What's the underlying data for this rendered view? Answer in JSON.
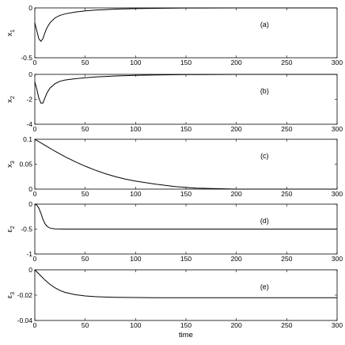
{
  "chart_data": [
    {
      "type": "line",
      "annotation": "(a)",
      "ylabel": "x",
      "ylabel_sub": "1",
      "xlim": [
        0,
        300
      ],
      "ylim": [
        -0.5,
        0
      ],
      "xticks": [
        0,
        50,
        100,
        150,
        200,
        250,
        300
      ],
      "yticks": [
        {
          "v": 0,
          "label": "0"
        },
        {
          "v": -0.5,
          "label": "-0.5"
        }
      ],
      "series": [
        {
          "x": [
            0,
            2,
            4,
            6,
            8,
            10,
            12,
            15,
            20,
            25,
            30,
            40,
            50,
            60,
            80,
            100,
            120,
            150,
            200,
            250,
            300
          ],
          "y": [
            -0.15,
            -0.23,
            -0.31,
            -0.335,
            -0.31,
            -0.25,
            -0.2,
            -0.15,
            -0.1,
            -0.075,
            -0.06,
            -0.042,
            -0.03,
            -0.022,
            -0.012,
            -0.007,
            -0.004,
            -0.001,
            0,
            0,
            0
          ]
        }
      ]
    },
    {
      "type": "line",
      "annotation": "(b)",
      "ylabel": "x",
      "ylabel_sub": "2",
      "xlim": [
        0,
        300
      ],
      "ylim": [
        -4,
        0
      ],
      "xticks": [
        0,
        50,
        100,
        150,
        200,
        250,
        300
      ],
      "yticks": [
        {
          "v": 0,
          "label": "0"
        },
        {
          "v": -2,
          "label": "-2"
        },
        {
          "v": -4,
          "label": "-4"
        }
      ],
      "series": [
        {
          "x": [
            0,
            2,
            4,
            6,
            8,
            10,
            12,
            15,
            20,
            25,
            30,
            40,
            50,
            60,
            80,
            100,
            120,
            150,
            200,
            250,
            300
          ],
          "y": [
            -0.6,
            -1.2,
            -1.9,
            -2.3,
            -2.3,
            -1.9,
            -1.5,
            -1.1,
            -0.75,
            -0.55,
            -0.45,
            -0.35,
            -0.27,
            -0.21,
            -0.13,
            -0.08,
            -0.05,
            -0.02,
            0,
            0,
            0
          ]
        }
      ]
    },
    {
      "type": "line",
      "annotation": "(c)",
      "ylabel": "x",
      "ylabel_sub": "3",
      "xlim": [
        0,
        300
      ],
      "ylim": [
        0,
        0.1
      ],
      "xticks": [
        0,
        50,
        100,
        150,
        200,
        250,
        300
      ],
      "yticks": [
        {
          "v": 0,
          "label": "0"
        },
        {
          "v": 0.05,
          "label": "0.05"
        },
        {
          "v": 0.1,
          "label": "0.1"
        }
      ],
      "series": [
        {
          "x": [
            0,
            10,
            20,
            30,
            40,
            50,
            60,
            70,
            80,
            90,
            100,
            120,
            140,
            160,
            180,
            200,
            220,
            250,
            300
          ],
          "y": [
            0.1,
            0.088,
            0.076,
            0.065,
            0.055,
            0.046,
            0.038,
            0.031,
            0.025,
            0.02,
            0.016,
            0.01,
            0.005,
            0.002,
            0.001,
            0,
            0,
            0,
            0
          ]
        }
      ]
    },
    {
      "type": "line",
      "annotation": "(d)",
      "ylabel": "ε",
      "ylabel_sub": "2",
      "xlim": [
        0,
        300
      ],
      "ylim": [
        -1,
        0
      ],
      "xticks": [
        0,
        50,
        100,
        150,
        200,
        250,
        300
      ],
      "yticks": [
        {
          "v": 0,
          "label": "0"
        },
        {
          "v": -0.5,
          "label": "-0.5"
        },
        {
          "v": -1,
          "label": "-1"
        }
      ],
      "series": [
        {
          "x": [
            0,
            2,
            4,
            6,
            8,
            10,
            12,
            14,
            16,
            18,
            20,
            25,
            30,
            40,
            50,
            100,
            200,
            300
          ],
          "y": [
            0,
            -0.02,
            -0.08,
            -0.18,
            -0.3,
            -0.39,
            -0.44,
            -0.47,
            -0.485,
            -0.49,
            -0.495,
            -0.498,
            -0.5,
            -0.5,
            -0.5,
            -0.5,
            -0.5,
            -0.5
          ]
        }
      ]
    },
    {
      "type": "line",
      "annotation": "(e)",
      "ylabel": "ε",
      "ylabel_sub": "3",
      "xlabel": "time",
      "xlim": [
        0,
        300
      ],
      "ylim": [
        -0.04,
        0
      ],
      "xticks": [
        0,
        50,
        100,
        150,
        200,
        250,
        300
      ],
      "yticks": [
        {
          "v": 0,
          "label": "0"
        },
        {
          "v": -0.02,
          "label": "-0.02"
        },
        {
          "v": -0.04,
          "label": "-0.04"
        }
      ],
      "series": [
        {
          "x": [
            0,
            5,
            10,
            15,
            20,
            25,
            30,
            40,
            50,
            60,
            70,
            80,
            100,
            120,
            150,
            200,
            250,
            300
          ],
          "y": [
            0,
            -0.004,
            -0.008,
            -0.0115,
            -0.0142,
            -0.0163,
            -0.0178,
            -0.0196,
            -0.0206,
            -0.0212,
            -0.0215,
            -0.0217,
            -0.0219,
            -0.022,
            -0.022,
            -0.022,
            -0.022,
            -0.022
          ]
        }
      ]
    }
  ]
}
